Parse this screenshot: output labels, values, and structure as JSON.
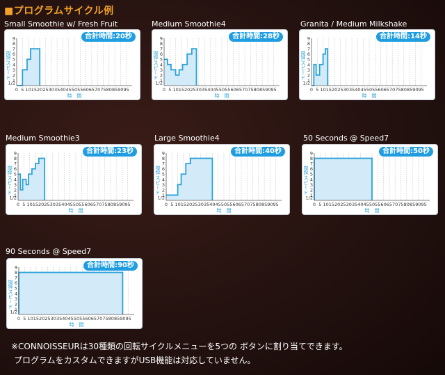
{
  "header": {
    "title": "■プログラムサイクル例"
  },
  "axes": {
    "ylabel": "撹拌スピード",
    "xlabel": "時　間",
    "yticks": [
      "1/2",
      "1",
      "2",
      "3",
      "4",
      "5",
      "6",
      "7",
      "8",
      "9"
    ],
    "xticks": [
      "0",
      "5",
      "10",
      "15",
      "20",
      "25",
      "30",
      "35",
      "40",
      "45",
      "50",
      "55",
      "60",
      "65",
      "70",
      "75",
      "80",
      "85",
      "90",
      "95"
    ]
  },
  "colors": {
    "line": "#2aa2d8",
    "fill": "#d3eaf8",
    "badge": "#1f9de0",
    "header": "#f2a227",
    "grid": "#b7bfc7"
  },
  "chart_data": [
    {
      "type": "area",
      "title": "Small Smoothie w/ Fresh Fruit",
      "badge": "合計時間:20秒",
      "total_seconds": 20,
      "x": [
        0,
        5,
        5,
        9,
        9,
        12,
        12,
        20,
        20
      ],
      "y": [
        0,
        0,
        3,
        3,
        5,
        5,
        7,
        7,
        0
      ],
      "xlim": [
        0,
        100
      ],
      "ylim": [
        0,
        9
      ]
    },
    {
      "type": "area",
      "title": "Medium Smoothie4",
      "badge": "合計時間:28秒",
      "total_seconds": 28,
      "x": [
        0,
        3,
        3,
        6,
        6,
        10,
        10,
        13,
        13,
        16,
        16,
        20,
        20,
        24,
        24,
        28,
        28
      ],
      "y": [
        5,
        5,
        4,
        4,
        3,
        3,
        2,
        2,
        3,
        3,
        4,
        4,
        6,
        6,
        7,
        7,
        0
      ],
      "xlim": [
        0,
        100
      ],
      "ylim": [
        0,
        9
      ]
    },
    {
      "type": "area",
      "title": "Granita / Medium Milkshake",
      "badge": "合計時間:14秒",
      "total_seconds": 14,
      "x": [
        0,
        2,
        2,
        4,
        4,
        7,
        7,
        10,
        10,
        12,
        12,
        14,
        14
      ],
      "y": [
        0,
        0,
        4,
        4,
        2,
        2,
        4,
        4,
        6,
        6,
        7,
        7,
        0
      ],
      "xlim": [
        0,
        100
      ],
      "ylim": [
        0,
        9
      ]
    },
    {
      "type": "area",
      "title": "Medium Smoothie3",
      "badge": "合計時間:23秒",
      "total_seconds": 23,
      "x": [
        0,
        2,
        2,
        4,
        4,
        7,
        7,
        9,
        9,
        12,
        12,
        15,
        15,
        18,
        18,
        23,
        23
      ],
      "y": [
        5,
        5,
        2,
        2,
        4,
        4,
        3,
        3,
        5,
        5,
        6,
        6,
        7,
        7,
        8,
        8,
        0
      ],
      "xlim": [
        0,
        100
      ],
      "ylim": [
        0,
        9
      ]
    },
    {
      "type": "area",
      "title": "Large Smoothie4",
      "badge": "合計時間:40秒",
      "total_seconds": 40,
      "x": [
        0,
        10,
        10,
        13,
        13,
        17,
        17,
        21,
        21,
        40,
        40
      ],
      "y": [
        1,
        1,
        3,
        3,
        5,
        5,
        7,
        7,
        8,
        8,
        0
      ],
      "xlim": [
        0,
        100
      ],
      "ylim": [
        0,
        9
      ]
    },
    {
      "type": "area",
      "title": "50 Seconds @ Speed7",
      "badge": "合計時間:50秒",
      "total_seconds": 50,
      "x": [
        0,
        0,
        50,
        50
      ],
      "y": [
        0,
        8,
        8,
        0
      ],
      "xlim": [
        0,
        100
      ],
      "ylim": [
        0,
        9
      ]
    },
    {
      "type": "area",
      "title": "90 Seconds @ Speed7",
      "badge": "合計時間:90秒",
      "total_seconds": 90,
      "x": [
        0,
        0,
        90,
        90
      ],
      "y": [
        0,
        8,
        8,
        0
      ],
      "xlim": [
        0,
        100
      ],
      "ylim": [
        0,
        9
      ]
    }
  ],
  "footnote": {
    "line1": "※CONNOISSEURは30種類の回転サイクルメニューを5つの ボタンに割り当てできます。",
    "line2": "プログラムをカスタムできますがUSB機能は対応していません。"
  }
}
